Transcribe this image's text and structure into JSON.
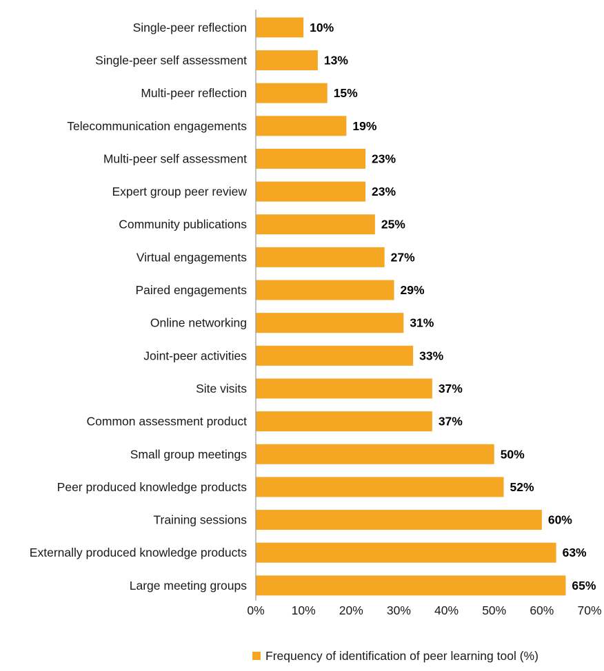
{
  "chart_data": {
    "type": "bar",
    "orientation": "horizontal",
    "title": "",
    "xlabel": "",
    "ylabel": "",
    "categories": [
      "Single-peer reflection",
      "Single-peer self assessment",
      "Multi-peer reflection",
      "Telecommunication engagements",
      "Multi-peer self assessment",
      "Expert group peer review",
      "Community publications",
      "Virtual engagements",
      "Paired engagements",
      "Online networking",
      "Joint-peer activities",
      "Site visits",
      "Common assessment product",
      "Small group meetings",
      "Peer produced knowledge products",
      "Training sessions",
      "Externally produced knowledge products",
      "Large meeting groups"
    ],
    "series": [
      {
        "name": "Frequency of identification of peer learning tool (%)",
        "values": [
          10,
          13,
          15,
          19,
          23,
          23,
          25,
          27,
          29,
          31,
          33,
          37,
          37,
          50,
          52,
          60,
          63,
          65
        ],
        "labels": [
          "10%",
          "13%",
          "15%",
          "19%",
          "23%",
          "23%",
          "25%",
          "27%",
          "29%",
          "31%",
          "33%",
          "37%",
          "37%",
          "50%",
          "52%",
          "60%",
          "63%",
          "65%"
        ],
        "color": "#F5A623"
      }
    ],
    "xlim": [
      0,
      70
    ],
    "xticks": [
      0,
      10,
      20,
      30,
      40,
      50,
      60,
      70
    ],
    "xtick_labels": [
      "0%",
      "10%",
      "20%",
      "30%",
      "40%",
      "50%",
      "60%",
      "70%"
    ],
    "grid": false,
    "legend_position": "bottom"
  }
}
